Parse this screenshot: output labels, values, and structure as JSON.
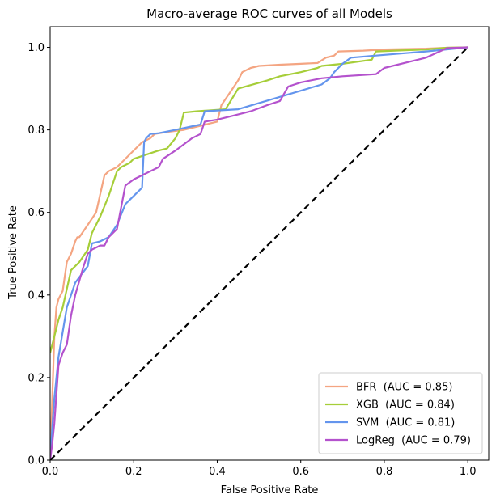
{
  "chart_data": {
    "type": "line",
    "title": "Macro-average ROC curves of all Models",
    "xlabel": "False Positive Rate",
    "ylabel": "True Positive Rate",
    "xlim": [
      0.0,
      1.05
    ],
    "ylim": [
      0.0,
      1.05
    ],
    "xticks": [
      "0.0",
      "0.2",
      "0.4",
      "0.6",
      "0.8",
      "1.0"
    ],
    "yticks": [
      "0.0",
      "0.2",
      "0.4",
      "0.6",
      "0.8",
      "1.0"
    ],
    "grid": false,
    "legend_position": "lower-right",
    "series": [
      {
        "name": "BFR  (AUC = 0.85)",
        "color": "#f4a582",
        "x": [
          0.0,
          0.005,
          0.01,
          0.015,
          0.02,
          0.03,
          0.04,
          0.05,
          0.06,
          0.065,
          0.07,
          0.09,
          0.11,
          0.13,
          0.14,
          0.16,
          0.18,
          0.2,
          0.22,
          0.24,
          0.25,
          0.28,
          0.32,
          0.36,
          0.4,
          0.41,
          0.43,
          0.45,
          0.46,
          0.48,
          0.5,
          0.55,
          0.6,
          0.64,
          0.66,
          0.68,
          0.69,
          0.75,
          0.8,
          0.9,
          0.95,
          1.0
        ],
        "y": [
          0.0,
          0.15,
          0.3,
          0.37,
          0.39,
          0.41,
          0.48,
          0.5,
          0.53,
          0.54,
          0.54,
          0.57,
          0.6,
          0.69,
          0.7,
          0.71,
          0.73,
          0.75,
          0.77,
          0.78,
          0.79,
          0.795,
          0.8,
          0.81,
          0.82,
          0.86,
          0.89,
          0.92,
          0.94,
          0.95,
          0.955,
          0.958,
          0.96,
          0.962,
          0.975,
          0.98,
          0.99,
          0.992,
          0.995,
          0.997,
          0.999,
          1.0
        ]
      },
      {
        "name": "XGB  (AUC = 0.84)",
        "color": "#a6ce39",
        "x": [
          0.0,
          0.005,
          0.01,
          0.02,
          0.03,
          0.05,
          0.07,
          0.09,
          0.1,
          0.12,
          0.14,
          0.16,
          0.17,
          0.19,
          0.2,
          0.23,
          0.26,
          0.28,
          0.3,
          0.31,
          0.32,
          0.35,
          0.42,
          0.45,
          0.52,
          0.55,
          0.6,
          0.64,
          0.65,
          0.7,
          0.77,
          0.78,
          0.9,
          0.95,
          1.0
        ],
        "y": [
          0.26,
          0.28,
          0.3,
          0.34,
          0.37,
          0.46,
          0.48,
          0.51,
          0.55,
          0.59,
          0.64,
          0.7,
          0.71,
          0.72,
          0.73,
          0.74,
          0.75,
          0.755,
          0.78,
          0.8,
          0.842,
          0.845,
          0.85,
          0.9,
          0.92,
          0.93,
          0.94,
          0.95,
          0.955,
          0.96,
          0.97,
          0.99,
          0.995,
          0.999,
          1.0
        ]
      },
      {
        "name": "SVM  (AUC = 0.81)",
        "color": "#6495ed",
        "x": [
          0.0,
          0.005,
          0.01,
          0.02,
          0.04,
          0.06,
          0.09,
          0.1,
          0.12,
          0.14,
          0.16,
          0.18,
          0.2,
          0.22,
          0.225,
          0.23,
          0.24,
          0.26,
          0.3,
          0.36,
          0.37,
          0.45,
          0.55,
          0.65,
          0.67,
          0.68,
          0.7,
          0.72,
          0.78,
          0.9,
          1.0
        ],
        "y": [
          0.0,
          0.08,
          0.15,
          0.25,
          0.37,
          0.43,
          0.47,
          0.525,
          0.53,
          0.54,
          0.57,
          0.62,
          0.64,
          0.66,
          0.77,
          0.78,
          0.79,
          0.792,
          0.8,
          0.813,
          0.845,
          0.85,
          0.88,
          0.91,
          0.925,
          0.94,
          0.96,
          0.975,
          0.98,
          0.99,
          1.0
        ]
      },
      {
        "name": "LogReg  (AUC = 0.79)",
        "color": "#b452cd",
        "x": [
          0.0,
          0.005,
          0.01,
          0.02,
          0.03,
          0.04,
          0.05,
          0.06,
          0.08,
          0.09,
          0.1,
          0.12,
          0.13,
          0.14,
          0.16,
          0.18,
          0.2,
          0.22,
          0.24,
          0.26,
          0.27,
          0.3,
          0.34,
          0.36,
          0.37,
          0.4,
          0.44,
          0.48,
          0.52,
          0.55,
          0.57,
          0.6,
          0.65,
          0.7,
          0.78,
          0.8,
          0.9,
          0.95,
          1.0
        ],
        "y": [
          0.0,
          0.04,
          0.09,
          0.23,
          0.26,
          0.28,
          0.35,
          0.4,
          0.47,
          0.5,
          0.51,
          0.52,
          0.52,
          0.54,
          0.56,
          0.665,
          0.68,
          0.69,
          0.7,
          0.71,
          0.73,
          0.75,
          0.78,
          0.79,
          0.82,
          0.825,
          0.835,
          0.845,
          0.86,
          0.87,
          0.905,
          0.915,
          0.925,
          0.93,
          0.935,
          0.95,
          0.975,
          0.998,
          1.0
        ]
      }
    ],
    "reference_line": {
      "x": [
        0.0,
        1.0
      ],
      "y": [
        0.0,
        1.0
      ],
      "color": "#000000",
      "style": "dashed"
    }
  }
}
